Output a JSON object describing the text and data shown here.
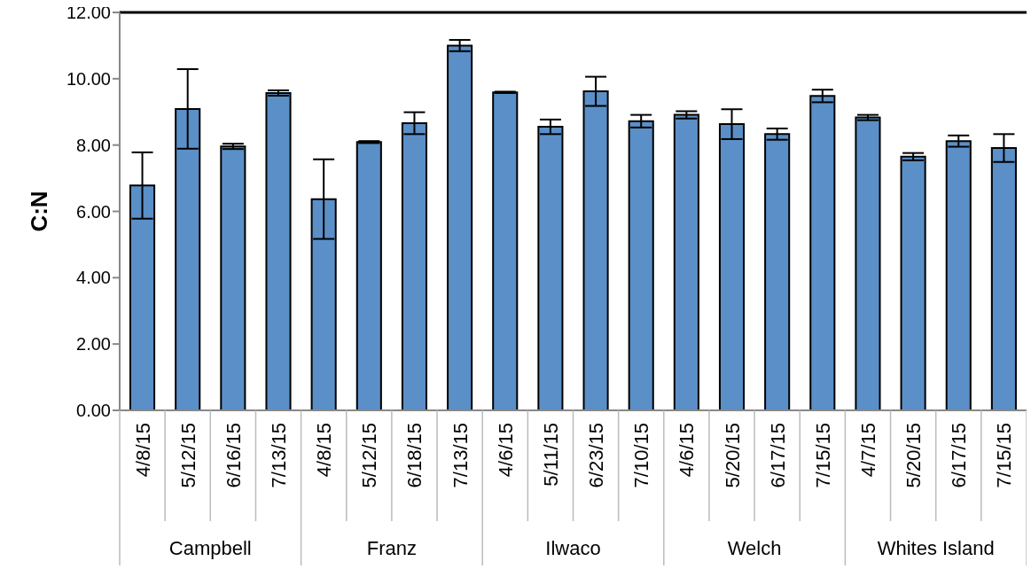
{
  "chart_data": {
    "type": "bar",
    "ylabel": "C:N",
    "categories": [
      "4/8/15",
      "5/12/15",
      "6/16/15",
      "7/13/15",
      "4/8/15",
      "5/12/15",
      "6/18/15",
      "7/13/15",
      "4/6/15",
      "5/11/15",
      "6/23/15",
      "7/10/15",
      "4/6/15",
      "5/20/15",
      "6/17/15",
      "7/15/15",
      "4/7/15",
      "5/20/15",
      "6/17/15",
      "7/15/15"
    ],
    "values": [
      6.78,
      9.09,
      7.96,
      9.57,
      6.37,
      8.09,
      8.66,
      11.0,
      9.59,
      8.55,
      9.62,
      8.72,
      8.91,
      8.63,
      8.33,
      9.48,
      8.83,
      7.65,
      8.12,
      7.91
    ],
    "errors": [
      1.0,
      1.2,
      0.08,
      0.08,
      1.2,
      0.03,
      0.33,
      0.17,
      0.02,
      0.22,
      0.44,
      0.19,
      0.11,
      0.45,
      0.17,
      0.19,
      0.08,
      0.11,
      0.17,
      0.42
    ],
    "color": "#5b8fc7",
    "ylim": [
      0,
      12
    ],
    "yticks": [
      {
        "value": 0,
        "label": "0.00"
      },
      {
        "value": 2,
        "label": "2.00"
      },
      {
        "value": 4,
        "label": "4.00"
      },
      {
        "value": 6,
        "label": "6.00"
      },
      {
        "value": 8,
        "label": "8.00"
      },
      {
        "value": 10,
        "label": "10.00"
      },
      {
        "value": 12,
        "label": "12.00"
      }
    ],
    "grid": false,
    "legend": false,
    "annotations": [
      "Campbell",
      "Franz",
      "Ilwaco",
      "Welch",
      "Whites Island"
    ]
  }
}
